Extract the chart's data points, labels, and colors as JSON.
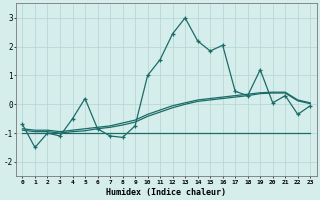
{
  "x": [
    0,
    1,
    2,
    3,
    4,
    5,
    6,
    7,
    8,
    9,
    10,
    11,
    12,
    13,
    14,
    15,
    16,
    17,
    18,
    19,
    20,
    21,
    22,
    23
  ],
  "line_main": [
    -0.7,
    -1.5,
    -1.0,
    -1.1,
    -0.5,
    0.2,
    -0.85,
    -1.1,
    -1.15,
    -0.75,
    1.0,
    1.55,
    2.45,
    3.0,
    2.2,
    1.85,
    2.05,
    0.45,
    0.3,
    1.2,
    0.05,
    0.3,
    -0.35,
    -0.05
  ],
  "line_trend1": [
    -0.85,
    -0.9,
    -0.9,
    -0.95,
    -0.9,
    -0.85,
    -0.8,
    -0.75,
    -0.65,
    -0.55,
    -0.35,
    -0.2,
    -0.05,
    0.05,
    0.15,
    0.2,
    0.25,
    0.3,
    0.35,
    0.4,
    0.42,
    0.42,
    0.15,
    0.05
  ],
  "line_trend2": [
    -0.9,
    -0.95,
    -0.95,
    -1.0,
    -0.95,
    -0.92,
    -0.85,
    -0.8,
    -0.72,
    -0.62,
    -0.42,
    -0.27,
    -0.12,
    0.0,
    0.1,
    0.15,
    0.2,
    0.25,
    0.3,
    0.37,
    0.39,
    0.39,
    0.12,
    0.02
  ],
  "line_flat": [
    -1.0,
    -1.0,
    -1.0,
    -1.0,
    -1.0,
    -1.0,
    -1.0,
    -1.0,
    -1.0,
    -1.0,
    -1.0,
    -1.0,
    -1.0,
    -1.0,
    -1.0,
    -1.0,
    -1.0,
    -1.0,
    -1.0,
    -1.0,
    -1.0,
    -1.0,
    -1.0,
    -1.0
  ],
  "bg_color": "#d5eeec",
  "grid_color": "#b8d8d6",
  "line_color": "#1c6b68",
  "xlabel": "Humidex (Indice chaleur)",
  "ylim": [
    -2.5,
    3.5
  ],
  "yticks": [
    -2,
    -1,
    0,
    1,
    2,
    3
  ],
  "xtick_labels": [
    "0",
    "1",
    "2",
    "3",
    "4",
    "5",
    "6",
    "7",
    "8",
    "9",
    "10",
    "11",
    "12",
    "13",
    "14",
    "15",
    "16",
    "17",
    "18",
    "19",
    "20",
    "21",
    "22",
    "23"
  ]
}
